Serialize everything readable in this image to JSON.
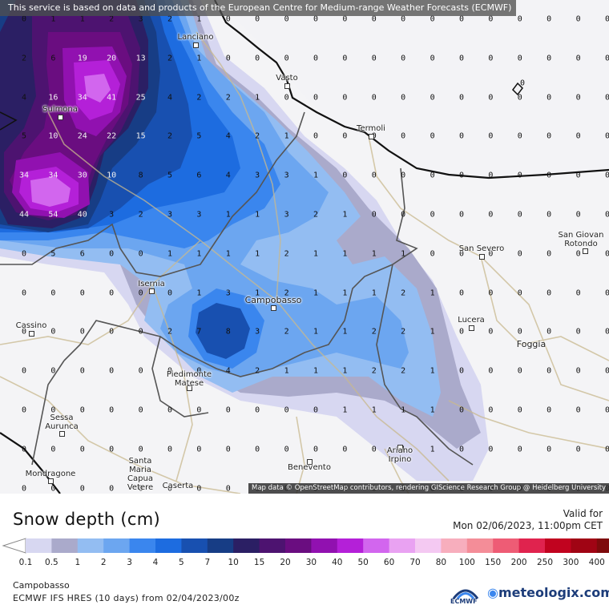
{
  "notice": "This service is based on data and products of the European Centre for Medium-range Weather Forecasts (ECMWF)",
  "attribution": "Map data © OpenStreetMap contributors, rendering GIScience Research Group @ Heidelberg University",
  "legend": {
    "title": "Snow depth (cm)",
    "valid_label": "Valid for",
    "valid_time": "Mon 02/06/2023, 11:00pm CET",
    "ticks": [
      "0.1",
      "0.5",
      "1",
      "2",
      "3",
      "4",
      "5",
      "7",
      "10",
      "15",
      "20",
      "30",
      "40",
      "50",
      "60",
      "70",
      "80",
      "100",
      "150",
      "200",
      "250",
      "300",
      "400"
    ],
    "colors": [
      "#d7d7f1",
      "#aaaacb",
      "#93bdf2",
      "#6ca6f0",
      "#3a86ee",
      "#1d6ce0",
      "#1850b0",
      "#173d85",
      "#2b1f64",
      "#4d1370",
      "#6a0d80",
      "#9111b0",
      "#b420d8",
      "#d266ee",
      "#e9a2f2",
      "#f4c9f2",
      "#f7aebd",
      "#f48d98",
      "#ee5c75",
      "#e0234e",
      "#c1031f",
      "#a00414",
      "#7e0a0c",
      "#4a0808"
    ]
  },
  "location": "Campobasso",
  "model_run": "ECMWF IFS HRES (10 days) from 02/04/2023/00z",
  "logos": {
    "ecmwf": "ECMWF",
    "meteologix": "meteologix.com"
  },
  "cities": {
    "lanciano": "Lanciano",
    "vasto": "Vasto",
    "termoli": "Termoli",
    "sulmona": "Sulmona",
    "san_severo": "San Severo",
    "san_giovanni_1": "San Giovan",
    "san_giovanni_2": "Rotondo",
    "isernia": "Isernia",
    "campobasso": "Campobasso",
    "cassino": "Cassino",
    "lucera": "Lucera",
    "foggia": "Foggia",
    "piedimonte_1": "Piedimonte",
    "piedimonte_2": "Matese",
    "sessa_1": "Sessa",
    "sessa_2": "Aurunca",
    "ariano_1": "Ariano",
    "ariano_2": "Irpino",
    "mondragone": "Mondragone",
    "santa_1": "Santa",
    "santa_2": "Maria",
    "santa_3": "Capua",
    "santa_4": "Vetere",
    "benevento": "Benevento",
    "caserta": "Caserta"
  },
  "grid_values": [
    [
      "0",
      "1",
      "1",
      "2",
      "3",
      "2",
      "1",
      "0",
      "0",
      "0",
      "0",
      "0",
      "0",
      "0",
      "0",
      "0",
      "0",
      "0",
      "0",
      "0",
      "0"
    ],
    [
      "2",
      "6",
      "19",
      "20",
      "13",
      "2",
      "1",
      "0",
      "0",
      "0",
      "0",
      "0",
      "0",
      "0",
      "0",
      "0",
      "0",
      "0",
      "0",
      "0",
      "0"
    ],
    [
      "4",
      "16",
      "34",
      "41",
      "25",
      "4",
      "2",
      "2",
      "1",
      "0",
      "0",
      "0",
      "0",
      "0",
      "0",
      "0",
      "0",
      "0",
      "0",
      "0",
      "0"
    ],
    [
      "5",
      "10",
      "24",
      "22",
      "15",
      "2",
      "5",
      "4",
      "2",
      "1",
      "0",
      "0",
      "0",
      "0",
      "0",
      "0",
      "0",
      "0",
      "0",
      "0",
      "0"
    ],
    [
      "34",
      "34",
      "30",
      "10",
      "8",
      "5",
      "6",
      "4",
      "3",
      "3",
      "1",
      "0",
      "0",
      "0",
      "0",
      "0",
      "0",
      "0",
      "0",
      "0",
      "0"
    ],
    [
      "44",
      "54",
      "40",
      "3",
      "2",
      "3",
      "3",
      "1",
      "1",
      "3",
      "2",
      "1",
      "0",
      "0",
      "0",
      "0",
      "0",
      "0",
      "0",
      "0",
      "0"
    ],
    [
      "0",
      "5",
      "6",
      "0",
      "0",
      "1",
      "1",
      "1",
      "1",
      "2",
      "1",
      "1",
      "1",
      "1",
      "0",
      "0",
      "0",
      "0",
      "0",
      "0",
      "0"
    ],
    [
      "0",
      "0",
      "0",
      "0",
      "0",
      "0",
      "1",
      "3",
      "1",
      "2",
      "1",
      "1",
      "1",
      "2",
      "1",
      "0",
      "0",
      "0",
      "0",
      "0",
      "0"
    ],
    [
      "0",
      "0",
      "0",
      "0",
      "0",
      "2",
      "7",
      "8",
      "3",
      "2",
      "1",
      "1",
      "2",
      "2",
      "1",
      "0",
      "0",
      "0",
      "0",
      "0",
      "0"
    ],
    [
      "0",
      "0",
      "0",
      "0",
      "0",
      "0",
      "0",
      "4",
      "2",
      "1",
      "1",
      "1",
      "2",
      "2",
      "1",
      "0",
      "0",
      "0",
      "0",
      "0",
      "0"
    ],
    [
      "0",
      "0",
      "0",
      "0",
      "0",
      "0",
      "0",
      "0",
      "0",
      "0",
      "0",
      "1",
      "1",
      "1",
      "1",
      "0",
      "0",
      "0",
      "0",
      "0",
      "0"
    ],
    [
      "0",
      "0",
      "0",
      "0",
      "0",
      "0",
      "0",
      "0",
      "0",
      "0",
      "0",
      "0",
      "0",
      "1",
      "1",
      "0",
      "0",
      "0",
      "0",
      "0",
      "0"
    ],
    [
      "0",
      "0",
      "0",
      "0",
      "0",
      "0",
      "0",
      "0",
      "0",
      "0",
      "0",
      "0",
      "0",
      "0",
      "0",
      "0",
      "0",
      "0",
      "0",
      "0",
      "0"
    ]
  ],
  "extra_label": "0"
}
